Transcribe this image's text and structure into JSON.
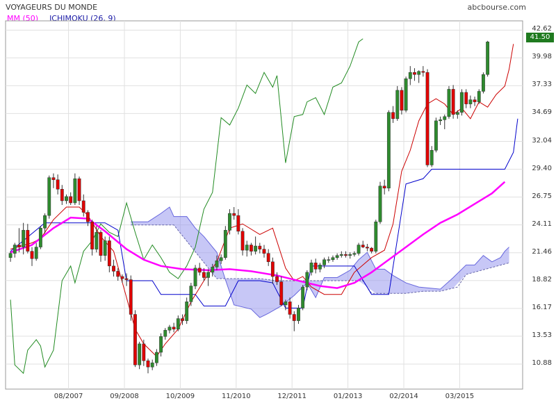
{
  "header": {
    "title": "VOYAGEURS DU MONDE",
    "source": "abcbourse.com"
  },
  "legend": {
    "mm_label": "MM (50)",
    "ichimoku_label": "ICHIMOKU (26, 9)"
  },
  "colors": {
    "up": "#2e8b2e",
    "down": "#e00000",
    "mm": "#ff00ff",
    "kijun": "#0000cc",
    "tenkan": "#cc0000",
    "chikou": "#228b22",
    "cloud": "#9999ee",
    "grid": "#e0e0e0"
  },
  "last_price_label": "41.50",
  "chart_data": {
    "type": "candlestick",
    "title": "VOYAGEURS DU MONDE",
    "y_ticks": [
      10.88,
      13.53,
      16.17,
      18.82,
      21.46,
      24.11,
      26.75,
      29.4,
      32.04,
      34.69,
      37.33,
      39.98,
      42.62
    ],
    "ylim": [
      8.5,
      43.5
    ],
    "x_ticks": [
      "08/2007",
      "09/2008",
      "10/2009",
      "11/2010",
      "12/2011",
      "01/2013",
      "02/2014",
      "03/2015"
    ],
    "x_tick_positions": [
      13.5,
      26.5,
      39.5,
      52.5,
      65.5,
      78.5,
      91.5,
      104.5
    ],
    "n_periods": 119,
    "candles": [
      [
        0,
        21.0,
        21.6,
        20.6,
        21.4
      ],
      [
        1,
        21.4,
        22.4,
        21.0,
        22.2
      ],
      [
        2,
        22.2,
        23.8,
        21.5,
        22.0
      ],
      [
        3,
        22.0,
        24.3,
        21.3,
        23.6
      ],
      [
        4,
        23.6,
        24.2,
        21.4,
        21.6
      ],
      [
        5,
        21.6,
        22.0,
        20.2,
        20.9
      ],
      [
        6,
        20.9,
        22.4,
        20.7,
        22.0
      ],
      [
        7,
        22.0,
        24.0,
        21.8,
        23.8
      ],
      [
        8,
        23.8,
        25.2,
        23.3,
        25.0
      ],
      [
        9,
        25.0,
        28.8,
        24.7,
        28.6
      ],
      [
        10,
        28.6,
        29.0,
        27.6,
        28.4
      ],
      [
        11,
        28.4,
        28.9,
        27.0,
        27.5
      ],
      [
        12,
        27.5,
        27.9,
        26.0,
        26.4
      ],
      [
        13,
        26.4,
        27.0,
        26.1,
        26.8
      ],
      [
        14,
        26.8,
        27.2,
        26.0,
        26.2
      ],
      [
        15,
        26.2,
        29.0,
        26.0,
        28.5
      ],
      [
        16,
        28.5,
        28.7,
        26.0,
        26.4
      ],
      [
        17,
        26.4,
        27.0,
        24.9,
        25.3
      ],
      [
        18,
        25.3,
        25.5,
        24.0,
        24.4
      ],
      [
        19,
        24.4,
        24.6,
        21.2,
        21.8
      ],
      [
        20,
        21.8,
        24.0,
        21.5,
        23.4
      ],
      [
        21,
        23.4,
        23.6,
        20.6,
        21.2
      ],
      [
        22,
        21.2,
        23.0,
        20.7,
        22.6
      ],
      [
        23,
        22.6,
        23.0,
        19.6,
        20.2
      ],
      [
        24,
        20.2,
        20.8,
        19.2,
        19.7
      ],
      [
        25,
        19.7,
        20.0,
        18.8,
        19.2
      ],
      [
        26,
        19.2,
        19.4,
        18.6,
        19.0
      ],
      [
        27,
        19.0,
        19.5,
        18.3,
        18.9
      ],
      [
        28,
        18.9,
        19.3,
        15.0,
        15.6
      ],
      [
        29,
        15.6,
        16.0,
        10.6,
        10.8
      ],
      [
        30,
        10.8,
        13.0,
        10.4,
        12.8
      ],
      [
        31,
        12.8,
        13.2,
        10.7,
        11.2
      ],
      [
        32,
        11.2,
        11.4,
        10.0,
        10.6
      ],
      [
        33,
        10.6,
        11.3,
        10.3,
        11.0
      ],
      [
        34,
        11.0,
        12.3,
        10.7,
        12.0
      ],
      [
        35,
        12.0,
        13.8,
        11.6,
        13.5
      ],
      [
        36,
        13.5,
        14.3,
        13.2,
        14.1
      ],
      [
        37,
        14.1,
        14.6,
        13.8,
        14.4
      ],
      [
        38,
        14.4,
        14.8,
        13.9,
        14.2
      ],
      [
        39,
        14.2,
        15.5,
        14.0,
        15.2
      ],
      [
        40,
        15.2,
        15.6,
        14.6,
        15.0
      ],
      [
        41,
        15.0,
        17.2,
        14.7,
        16.8
      ],
      [
        42,
        16.8,
        18.6,
        16.4,
        18.3
      ],
      [
        43,
        18.3,
        20.3,
        18.0,
        20.0
      ],
      [
        44,
        20.0,
        20.5,
        19.3,
        19.6
      ],
      [
        45,
        19.6,
        20.0,
        18.8,
        19.1
      ],
      [
        46,
        19.1,
        19.9,
        18.3,
        19.6
      ],
      [
        47,
        19.6,
        20.4,
        19.2,
        20.1
      ],
      [
        48,
        20.1,
        21.2,
        19.8,
        20.7
      ],
      [
        49,
        20.7,
        21.3,
        20.4,
        21.0
      ],
      [
        50,
        21.0,
        24.0,
        20.8,
        23.6
      ],
      [
        51,
        23.6,
        25.6,
        23.2,
        25.2
      ],
      [
        52,
        25.2,
        25.8,
        24.6,
        25.0
      ],
      [
        53,
        25.0,
        25.6,
        23.2,
        23.5
      ],
      [
        54,
        23.5,
        23.8,
        21.2,
        21.7
      ],
      [
        55,
        21.7,
        22.6,
        21.1,
        22.2
      ],
      [
        56,
        22.2,
        22.4,
        21.2,
        21.6
      ],
      [
        57,
        21.6,
        23.0,
        21.3,
        22.1
      ],
      [
        58,
        22.1,
        22.4,
        21.4,
        21.8
      ],
      [
        59,
        21.8,
        22.2,
        21.0,
        21.4
      ],
      [
        60,
        21.4,
        21.8,
        20.2,
        20.6
      ],
      [
        61,
        20.6,
        21.0,
        18.5,
        19.2
      ],
      [
        62,
        19.2,
        19.6,
        18.4,
        18.7
      ],
      [
        63,
        18.7,
        19.2,
        16.4,
        16.5
      ],
      [
        64,
        16.5,
        17.0,
        16.0,
        16.8
      ],
      [
        65,
        16.8,
        17.2,
        15.2,
        15.6
      ],
      [
        66,
        15.6,
        15.9,
        14.0,
        15.0
      ],
      [
        67,
        15.0,
        16.5,
        14.7,
        16.2
      ],
      [
        68,
        16.2,
        18.4,
        16.0,
        18.2
      ],
      [
        69,
        18.2,
        19.8,
        17.9,
        19.6
      ],
      [
        70,
        19.6,
        20.8,
        19.3,
        20.5
      ],
      [
        71,
        20.5,
        20.9,
        19.5,
        19.9
      ],
      [
        72,
        19.9,
        20.5,
        19.6,
        20.3
      ],
      [
        73,
        20.3,
        21.0,
        20.0,
        20.8
      ],
      [
        74,
        20.8,
        21.1,
        20.5,
        20.8
      ],
      [
        75,
        20.8,
        21.2,
        20.6,
        21.0
      ],
      [
        76,
        21.0,
        21.4,
        20.8,
        21.2
      ],
      [
        77,
        21.2,
        21.6,
        21.0,
        21.3
      ],
      [
        78,
        21.3,
        21.6,
        21.0,
        21.2
      ],
      [
        79,
        21.2,
        21.5,
        20.9,
        21.3
      ],
      [
        80,
        21.3,
        21.6,
        21.1,
        21.4
      ],
      [
        81,
        21.4,
        22.4,
        21.2,
        22.2
      ],
      [
        82,
        22.2,
        22.6,
        21.9,
        22.0
      ],
      [
        83,
        22.0,
        22.3,
        21.6,
        21.9
      ],
      [
        84,
        21.9,
        22.0,
        21.4,
        21.6
      ],
      [
        85,
        21.6,
        24.6,
        21.4,
        24.4
      ],
      [
        86,
        24.4,
        28.2,
        24.2,
        27.8
      ],
      [
        87,
        27.8,
        28.4,
        27.0,
        27.6
      ],
      [
        88,
        27.6,
        35.0,
        27.3,
        34.8
      ],
      [
        89,
        34.8,
        35.4,
        33.8,
        34.2
      ],
      [
        90,
        34.2,
        37.3,
        34.0,
        36.9
      ],
      [
        91,
        36.9,
        37.2,
        34.6,
        35.0
      ],
      [
        92,
        35.0,
        38.2,
        34.8,
        38.0
      ],
      [
        93,
        38.0,
        39.2,
        37.4,
        38.6
      ],
      [
        94,
        38.6,
        39.0,
        37.8,
        38.4
      ],
      [
        95,
        38.4,
        38.8,
        37.6,
        38.7
      ],
      [
        96,
        38.7,
        39.2,
        38.2,
        38.6
      ],
      [
        97,
        38.6,
        38.9,
        29.6,
        29.8
      ],
      [
        98,
        29.8,
        31.6,
        29.6,
        31.2
      ],
      [
        99,
        31.2,
        34.3,
        31.0,
        34.0
      ],
      [
        100,
        34.0,
        34.4,
        33.6,
        34.1
      ],
      [
        101,
        34.1,
        34.6,
        33.2,
        34.4
      ],
      [
        102,
        34.4,
        37.3,
        34.2,
        37.0
      ],
      [
        103,
        37.0,
        37.4,
        34.2,
        34.6
      ],
      [
        104,
        34.6,
        35.0,
        34.2,
        34.8
      ],
      [
        105,
        34.8,
        37.0,
        34.5,
        36.7
      ],
      [
        106,
        36.7,
        37.0,
        35.2,
        35.6
      ],
      [
        107,
        35.6,
        36.4,
        35.2,
        36.0
      ],
      [
        108,
        36.0,
        36.3,
        35.4,
        35.8
      ],
      [
        109,
        35.8,
        37.0,
        35.6,
        36.8
      ],
      [
        110,
        36.8,
        38.6,
        36.6,
        38.4
      ],
      [
        111,
        38.4,
        41.6,
        38.2,
        41.5
      ]
    ],
    "mm50": [
      [
        0,
        21.5
      ],
      [
        5,
        22.2
      ],
      [
        10,
        23.8
      ],
      [
        14,
        24.8
      ],
      [
        18,
        24.7
      ],
      [
        22,
        23.5
      ],
      [
        27,
        21.8
      ],
      [
        31,
        20.8
      ],
      [
        35,
        20.2
      ],
      [
        40,
        19.9
      ],
      [
        46,
        19.8
      ],
      [
        51,
        19.9
      ],
      [
        56,
        19.7
      ],
      [
        62,
        19.3
      ],
      [
        67,
        18.8
      ],
      [
        72,
        18.3
      ],
      [
        76,
        18.1
      ],
      [
        80,
        18.6
      ],
      [
        84,
        19.6
      ],
      [
        88,
        20.8
      ],
      [
        92,
        22.0
      ],
      [
        96,
        23.2
      ],
      [
        100,
        24.3
      ],
      [
        104,
        25.1
      ],
      [
        108,
        26.1
      ],
      [
        112,
        27.1
      ],
      [
        115,
        28.2
      ]
    ],
    "kijun": [
      [
        0,
        21.6
      ],
      [
        8,
        24.3
      ],
      [
        22,
        24.3
      ],
      [
        25,
        23.6
      ],
      [
        27,
        18.8
      ],
      [
        33,
        18.8
      ],
      [
        35,
        17.5
      ],
      [
        43,
        17.5
      ],
      [
        45,
        16.4
      ],
      [
        50,
        16.4
      ],
      [
        53,
        18.8
      ],
      [
        58,
        18.8
      ],
      [
        61,
        18.6
      ],
      [
        64,
        16.2
      ],
      [
        68,
        16.2
      ],
      [
        70,
        20.2
      ],
      [
        80,
        20.2
      ],
      [
        84,
        17.5
      ],
      [
        88,
        17.5
      ],
      [
        92,
        28.0
      ],
      [
        96,
        28.5
      ],
      [
        98,
        29.4
      ],
      [
        115,
        29.4
      ],
      [
        117,
        31.0
      ],
      [
        118,
        34.2
      ]
    ],
    "tenkan": [
      [
        0,
        21.8
      ],
      [
        5,
        22.4
      ],
      [
        7,
        22.8
      ],
      [
        10,
        24.6
      ],
      [
        13,
        25.8
      ],
      [
        16,
        25.8
      ],
      [
        18,
        25.0
      ],
      [
        21,
        23.0
      ],
      [
        24,
        21.6
      ],
      [
        27,
        17.2
      ],
      [
        29,
        14.2
      ],
      [
        31,
        12.8
      ],
      [
        34,
        11.6
      ],
      [
        36,
        12.8
      ],
      [
        39,
        14.2
      ],
      [
        42,
        16.8
      ],
      [
        45,
        18.8
      ],
      [
        48,
        20.6
      ],
      [
        51,
        23.8
      ],
      [
        54,
        24.2
      ],
      [
        58,
        23.2
      ],
      [
        61,
        23.8
      ],
      [
        64,
        20.0
      ],
      [
        66,
        18.8
      ],
      [
        68,
        19.2
      ],
      [
        70,
        18.2
      ],
      [
        73,
        17.5
      ],
      [
        77,
        17.5
      ],
      [
        80,
        19.6
      ],
      [
        84,
        21.0
      ],
      [
        87,
        21.7
      ],
      [
        89,
        24.2
      ],
      [
        91,
        29.2
      ],
      [
        93,
        31.2
      ],
      [
        95,
        34.0
      ],
      [
        97,
        35.6
      ],
      [
        99,
        36.1
      ],
      [
        101,
        35.6
      ],
      [
        103,
        34.6
      ],
      [
        105,
        35.2
      ],
      [
        107,
        34.2
      ],
      [
        109,
        35.8
      ],
      [
        111,
        35.3
      ],
      [
        113,
        36.5
      ],
      [
        115,
        37.3
      ],
      [
        116,
        38.9
      ],
      [
        117,
        41.3
      ]
    ],
    "chikou": [
      [
        0,
        17.0
      ],
      [
        1,
        10.8
      ],
      [
        3,
        10.0
      ],
      [
        4,
        12.2
      ],
      [
        6,
        13.2
      ],
      [
        7,
        12.6
      ],
      [
        8,
        10.6
      ],
      [
        10,
        12.2
      ],
      [
        12,
        18.8
      ],
      [
        14,
        20.2
      ],
      [
        15,
        18.6
      ],
      [
        17,
        21.6
      ],
      [
        19,
        22.6
      ],
      [
        21,
        24.2
      ],
      [
        23,
        23.4
      ],
      [
        25,
        23.0
      ],
      [
        27,
        26.2
      ],
      [
        29,
        23.4
      ],
      [
        31,
        20.8
      ],
      [
        33,
        22.2
      ],
      [
        35,
        21.0
      ],
      [
        37,
        19.6
      ],
      [
        39,
        19.0
      ],
      [
        41,
        20.2
      ],
      [
        43,
        22.0
      ],
      [
        45,
        25.6
      ],
      [
        47,
        27.2
      ],
      [
        49,
        34.3
      ],
      [
        51,
        33.6
      ],
      [
        53,
        35.2
      ],
      [
        55,
        37.4
      ],
      [
        57,
        36.6
      ],
      [
        59,
        38.6
      ],
      [
        61,
        37.2
      ],
      [
        62,
        38.3
      ],
      [
        64,
        30.0
      ],
      [
        66,
        34.4
      ],
      [
        68,
        34.6
      ],
      [
        69,
        35.8
      ],
      [
        71,
        36.2
      ],
      [
        73,
        34.6
      ],
      [
        75,
        37.2
      ],
      [
        77,
        37.6
      ],
      [
        79,
        39.2
      ],
      [
        81,
        41.5
      ],
      [
        82,
        41.8
      ]
    ],
    "senkou_a": [
      [
        28,
        24.4
      ],
      [
        32,
        24.4
      ],
      [
        35,
        25.2
      ],
      [
        37,
        25.8
      ],
      [
        38,
        24.9
      ],
      [
        41,
        24.9
      ],
      [
        43,
        23.8
      ],
      [
        45,
        23.0
      ],
      [
        48,
        21.5
      ],
      [
        50,
        18.9
      ],
      [
        52,
        16.5
      ],
      [
        56,
        16.1
      ],
      [
        58,
        15.3
      ],
      [
        60,
        15.7
      ],
      [
        63,
        16.4
      ],
      [
        66,
        17.4
      ],
      [
        69,
        18.6
      ],
      [
        71,
        17.2
      ],
      [
        73,
        19.1
      ],
      [
        76,
        19.1
      ],
      [
        79,
        19.8
      ],
      [
        81,
        20.8
      ],
      [
        83,
        21.5
      ],
      [
        85,
        19.9
      ],
      [
        87,
        19.9
      ],
      [
        89,
        19.3
      ],
      [
        92,
        18.6
      ],
      [
        95,
        18.2
      ],
      [
        100,
        18.0
      ],
      [
        103,
        19.1
      ],
      [
        106,
        20.3
      ],
      [
        108,
        20.3
      ],
      [
        110,
        21.2
      ],
      [
        112,
        20.6
      ],
      [
        114,
        21.0
      ],
      [
        115,
        21.6
      ],
      [
        116,
        22.0
      ]
    ],
    "senkou_b": [
      [
        28,
        24.1
      ],
      [
        38,
        24.1
      ],
      [
        48,
        19.0
      ],
      [
        58,
        19.0
      ],
      [
        62,
        18.8
      ],
      [
        66,
        18.8
      ],
      [
        70,
        18.8
      ],
      [
        80,
        18.8
      ],
      [
        82,
        18.8
      ],
      [
        84,
        17.6
      ],
      [
        92,
        17.6
      ],
      [
        96,
        17.8
      ],
      [
        100,
        17.8
      ],
      [
        104,
        18.2
      ],
      [
        106,
        19.4
      ],
      [
        116,
        20.5
      ]
    ],
    "last_value": 41.5
  }
}
